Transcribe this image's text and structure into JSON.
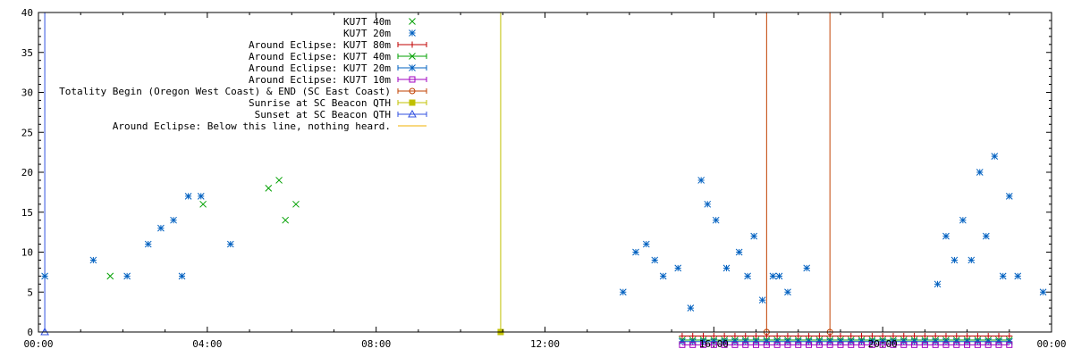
{
  "chart_data": {
    "type": "scatter",
    "title": "",
    "xlabel": "",
    "ylabel": "",
    "xlim": [
      0,
      24
    ],
    "ylim": [
      0,
      40
    ],
    "grid": false,
    "legend_position": "top-center",
    "x_ticks": [
      "00:00",
      "04:00",
      "08:00",
      "12:00",
      "16:00",
      "20:00",
      "00:00"
    ],
    "y_ticks": [
      0,
      5,
      10,
      15,
      20,
      25,
      30,
      35,
      40
    ],
    "series": [
      {
        "name": "KU7T 40m",
        "color": "#00a000",
        "marker": "x",
        "points": [
          [
            1.7,
            7
          ],
          [
            3.9,
            16
          ],
          [
            5.45,
            18
          ],
          [
            5.7,
            19
          ],
          [
            5.85,
            14
          ],
          [
            6.1,
            16
          ]
        ]
      },
      {
        "name": "KU7T 20m",
        "color": "#0060c0",
        "marker": "star",
        "points": [
          [
            0.15,
            7
          ],
          [
            1.3,
            9
          ],
          [
            2.1,
            7
          ],
          [
            2.6,
            11
          ],
          [
            2.9,
            13
          ],
          [
            3.2,
            14
          ],
          [
            3.4,
            7
          ],
          [
            3.55,
            17
          ],
          [
            3.85,
            17
          ],
          [
            4.55,
            11
          ],
          [
            13.85,
            5
          ],
          [
            14.15,
            10
          ],
          [
            14.4,
            11
          ],
          [
            14.6,
            9
          ],
          [
            14.8,
            7
          ],
          [
            15.15,
            8
          ],
          [
            15.45,
            3
          ],
          [
            15.7,
            19
          ],
          [
            15.85,
            16
          ],
          [
            16.05,
            14
          ],
          [
            16.3,
            8
          ],
          [
            16.6,
            10
          ],
          [
            16.8,
            7
          ],
          [
            16.95,
            12
          ],
          [
            17.15,
            4
          ],
          [
            17.4,
            7
          ],
          [
            17.55,
            7
          ],
          [
            17.75,
            5
          ],
          [
            18.2,
            8
          ],
          [
            21.3,
            6
          ],
          [
            21.5,
            12
          ],
          [
            21.7,
            9
          ],
          [
            21.9,
            14
          ],
          [
            22.1,
            9
          ],
          [
            22.3,
            20
          ],
          [
            22.45,
            12
          ],
          [
            22.65,
            22
          ],
          [
            22.85,
            7
          ],
          [
            23.0,
            17
          ],
          [
            23.2,
            7
          ],
          [
            23.8,
            5
          ]
        ]
      },
      {
        "name": "Around Eclipse: KU7T 80m",
        "color": "#c00000",
        "marker": "plus",
        "y": -0.5,
        "x_start": 15.25,
        "x_end": 23.0,
        "step": 0.25
      },
      {
        "name": "Around Eclipse: KU7T 40m",
        "color": "#00a000",
        "marker": "x",
        "y": -1.0,
        "x_start": 15.25,
        "x_end": 23.0,
        "step": 0.25
      },
      {
        "name": "Around Eclipse: KU7T 20m",
        "color": "#0060c0",
        "marker": "star",
        "y": -1.2,
        "x_start": 15.25,
        "x_end": 23.0,
        "step": 0.25
      },
      {
        "name": "Around Eclipse: KU7T 10m",
        "color": "#a000c0",
        "marker": "square",
        "y": -1.6,
        "x_start": 15.25,
        "x_end": 23.0,
        "step": 0.25
      },
      {
        "name": "Totality Begin (Oregon West Coast) & END (SC East Coast)",
        "color": "#c04000",
        "marker": "circle",
        "x_values": [
          17.25,
          18.75
        ]
      },
      {
        "name": "Sunrise at SC Beacon QTH",
        "color": "#c0c000",
        "marker": "filled-square",
        "x_values": [
          10.95
        ]
      },
      {
        "name": "Sunset at SC Beacon QTH",
        "color": "#3050e0",
        "marker": "triangle",
        "x_values": [
          0.15
        ]
      },
      {
        "name": "Around Eclipse: Below this line, nothing heard.",
        "color": "#f0b000",
        "marker": "none",
        "y": 0
      }
    ]
  }
}
